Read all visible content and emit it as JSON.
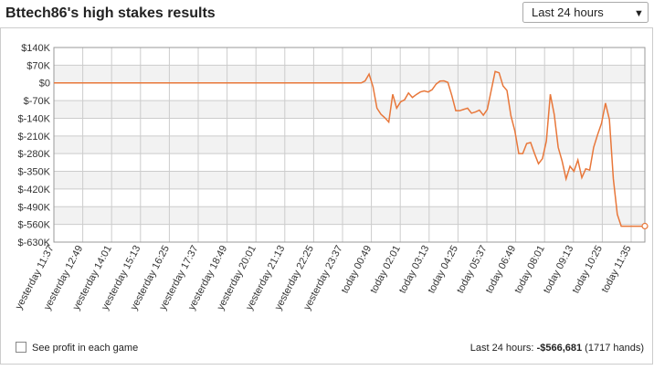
{
  "header": {
    "title": "Bttech86's high stakes results",
    "range_select": "Last 24 hours",
    "dropdown_arrow": "▼"
  },
  "chart_data": {
    "type": "line",
    "ylim": [
      -630000,
      140000
    ],
    "yticks": [
      {
        "value": 140000,
        "label": "$140K"
      },
      {
        "value": 70000,
        "label": "$70K"
      },
      {
        "value": 0,
        "label": "$0"
      },
      {
        "value": -70000,
        "label": "$-70K"
      },
      {
        "value": -140000,
        "label": "$-140K"
      },
      {
        "value": -210000,
        "label": "$-210K"
      },
      {
        "value": -280000,
        "label": "$-280K"
      },
      {
        "value": -350000,
        "label": "$-350K"
      },
      {
        "value": -420000,
        "label": "$-420K"
      },
      {
        "value": -490000,
        "label": "$-490K"
      },
      {
        "value": -560000,
        "label": "$-560K"
      },
      {
        "value": -630000,
        "label": "$-630K"
      }
    ],
    "xticks": [
      "yesterday 11:37",
      "yesterday 12:49",
      "yesterday 14:01",
      "yesterday 15:13",
      "yesterday 16:25",
      "yesterday 17:37",
      "yesterday 18:49",
      "yesterday 20:01",
      "yesterday 21:13",
      "yesterday 22:25",
      "yesterday 23:37",
      "today 00:49",
      "today 02:01",
      "today 03:13",
      "today 04:25",
      "today 05:37",
      "today 06:49",
      "today 08:01",
      "today 09:13",
      "today 10:25",
      "today 11:35"
    ],
    "grid": true,
    "color": "#e8773a",
    "values": [
      0,
      0,
      0,
      0,
      0,
      0,
      0,
      0,
      0,
      0,
      0,
      0,
      0,
      0,
      0,
      0,
      0,
      0,
      0,
      0,
      0,
      0,
      0,
      0,
      0,
      0,
      0,
      0,
      0,
      0,
      0,
      0,
      0,
      0,
      0,
      0,
      0,
      0,
      0,
      0,
      0,
      0,
      0,
      0,
      0,
      0,
      0,
      0,
      0,
      0,
      0,
      0,
      0,
      0,
      0,
      0,
      0,
      0,
      0,
      0,
      0,
      0,
      0,
      0,
      0,
      0,
      0,
      0,
      0,
      0,
      0,
      0,
      0,
      0,
      0,
      0,
      0,
      0,
      0,
      8000,
      35000,
      -15000,
      -100000,
      -124000,
      -138000,
      -155000,
      -45000,
      -100000,
      -75000,
      -67000,
      -40000,
      -58000,
      -46000,
      -36000,
      -32000,
      -36000,
      -27000,
      -5000,
      7000,
      8000,
      2000,
      -50000,
      -110000,
      -110000,
      -105000,
      -100000,
      -120000,
      -115000,
      -108000,
      -128000,
      -105000,
      -30000,
      45000,
      40000,
      -12000,
      -30000,
      -130000,
      -190000,
      -280000,
      -280000,
      -240000,
      -236000,
      -280000,
      -320000,
      -300000,
      -230000,
      -45000,
      -125000,
      -255000,
      -310000,
      -380000,
      -330000,
      -350000,
      -305000,
      -375000,
      -340000,
      -345000,
      -255000,
      -205000,
      -160000,
      -80000,
      -145000,
      -380000,
      -520000,
      -567000,
      -567000,
      -567000,
      -567000,
      -567000,
      -567000,
      -566681
    ]
  },
  "footer": {
    "checkbox_label": "See profit in each game",
    "summary_label": "Last 24 hours:",
    "summary_value": "-$566,681",
    "summary_hands": "(1717 hands)"
  }
}
